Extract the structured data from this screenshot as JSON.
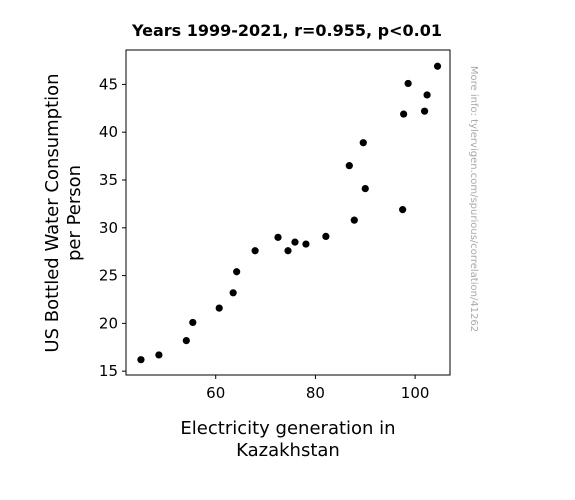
{
  "chart_data": {
    "type": "scatter",
    "title": "Years 1999-2021, r=0.955, p<0.01",
    "xlabel": [
      "Electricity generation in",
      "Kazakhstan"
    ],
    "ylabel": [
      "US Bottled Water Consumption",
      "per Person"
    ],
    "watermark": "More info: tylervigen.com/spurious/correlation/41262",
    "xlim": [
      42,
      107
    ],
    "ylim": [
      14.6,
      48.6
    ],
    "xticks": [
      60,
      80,
      100
    ],
    "yticks": [
      15,
      20,
      25,
      30,
      35,
      40,
      45
    ],
    "grid": false,
    "marker_color": "#000000",
    "points": [
      {
        "x": 45.0,
        "y": 16.2
      },
      {
        "x": 48.6,
        "y": 16.7
      },
      {
        "x": 54.1,
        "y": 18.2
      },
      {
        "x": 55.4,
        "y": 20.1
      },
      {
        "x": 60.7,
        "y": 21.6
      },
      {
        "x": 63.5,
        "y": 23.2
      },
      {
        "x": 64.2,
        "y": 25.4
      },
      {
        "x": 67.9,
        "y": 27.6
      },
      {
        "x": 72.5,
        "y": 29.0
      },
      {
        "x": 74.5,
        "y": 27.6
      },
      {
        "x": 75.9,
        "y": 28.5
      },
      {
        "x": 78.1,
        "y": 28.3
      },
      {
        "x": 82.1,
        "y": 29.1
      },
      {
        "x": 86.8,
        "y": 36.5
      },
      {
        "x": 87.8,
        "y": 30.8
      },
      {
        "x": 89.6,
        "y": 38.9
      },
      {
        "x": 90.0,
        "y": 34.1
      },
      {
        "x": 97.5,
        "y": 31.9
      },
      {
        "x": 97.7,
        "y": 41.9
      },
      {
        "x": 98.6,
        "y": 45.1
      },
      {
        "x": 101.9,
        "y": 42.2
      },
      {
        "x": 102.4,
        "y": 43.9
      },
      {
        "x": 104.5,
        "y": 46.9
      }
    ]
  }
}
